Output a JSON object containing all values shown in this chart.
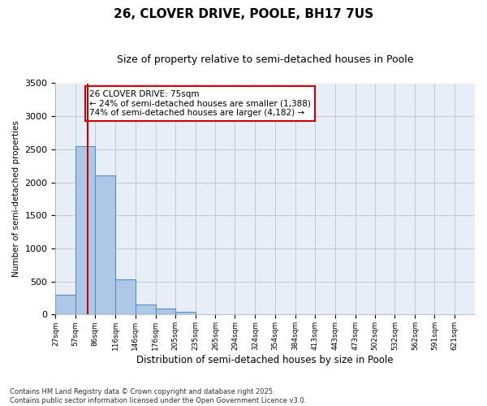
{
  "title": "26, CLOVER DRIVE, POOLE, BH17 7US",
  "subtitle": "Size of property relative to semi-detached houses in Poole",
  "xlabel": "Distribution of semi-detached houses by size in Poole",
  "ylabel": "Number of semi-detached properties",
  "bin_labels": [
    "27sqm",
    "57sqm",
    "86sqm",
    "116sqm",
    "146sqm",
    "176sqm",
    "205sqm",
    "235sqm",
    "265sqm",
    "294sqm",
    "324sqm",
    "354sqm",
    "384sqm",
    "413sqm",
    "443sqm",
    "473sqm",
    "502sqm",
    "532sqm",
    "562sqm",
    "591sqm",
    "621sqm"
  ],
  "bin_edges": [
    27,
    57,
    86,
    116,
    146,
    176,
    205,
    235,
    265,
    294,
    324,
    354,
    384,
    413,
    443,
    473,
    502,
    532,
    562,
    591,
    621
  ],
  "bar_heights": [
    300,
    2550,
    2100,
    530,
    155,
    90,
    40,
    0,
    0,
    0,
    0,
    0,
    0,
    0,
    0,
    0,
    0,
    0,
    0,
    0
  ],
  "bar_color": "#adc8e6",
  "bar_edge_color": "#5a8fc0",
  "bar_edge_width": 0.8,
  "grid_color": "#c0c8d8",
  "bg_color": "#e8eef8",
  "red_line_x": 75,
  "red_line_color": "#cc0000",
  "annotation_line1": "26 CLOVER DRIVE: 75sqm",
  "annotation_line2": "← 24% of semi-detached houses are smaller (1,388)",
  "annotation_line3": "74% of semi-detached houses are larger (4,182) →",
  "ylim": [
    0,
    3500
  ],
  "yticks": [
    0,
    500,
    1000,
    1500,
    2000,
    2500,
    3000,
    3500
  ],
  "footnote": "Contains HM Land Registry data © Crown copyright and database right 2025.\nContains public sector information licensed under the Open Government Licence v3.0.",
  "title_fontsize": 11,
  "subtitle_fontsize": 9,
  "annot_fontsize": 7.5,
  "footnote_fontsize": 6,
  "ylabel_fontsize": 7.5,
  "xlabel_fontsize": 8.5,
  "ytick_fontsize": 8,
  "xtick_fontsize": 6.5
}
